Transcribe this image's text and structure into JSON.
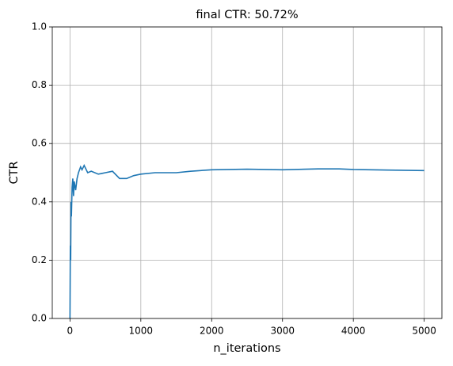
{
  "chart_data": {
    "type": "line",
    "title": "final CTR: 50.72%",
    "xlabel": "n_iterations",
    "ylabel": "CTR",
    "x": [
      0,
      5,
      10,
      15,
      20,
      30,
      40,
      50,
      60,
      80,
      100,
      120,
      150,
      170,
      200,
      250,
      300,
      400,
      500,
      600,
      700,
      800,
      900,
      1000,
      1200,
      1500,
      1700,
      2000,
      2500,
      3000,
      3500,
      3800,
      4000,
      4500,
      5000
    ],
    "values": [
      0,
      0.25,
      0.2,
      0.4,
      0.35,
      0.45,
      0.48,
      0.42,
      0.47,
      0.44,
      0.48,
      0.5,
      0.52,
      0.51,
      0.525,
      0.5,
      0.505,
      0.495,
      0.5,
      0.505,
      0.48,
      0.48,
      0.49,
      0.495,
      0.5,
      0.5,
      0.505,
      0.51,
      0.512,
      0.51,
      0.513,
      0.513,
      0.511,
      0.509,
      0.5072
    ],
    "color": "#1f77b4",
    "xlim": [
      -250,
      5250
    ],
    "ylim": [
      0,
      1
    ],
    "xticks": [
      0,
      1000,
      2000,
      3000,
      4000,
      5000
    ],
    "yticks": [
      {
        "value": 0,
        "label": "0.0"
      },
      0.2,
      0.4,
      0.6,
      0.8,
      {
        "value": 1,
        "label": "1.0"
      }
    ],
    "grid": true
  }
}
